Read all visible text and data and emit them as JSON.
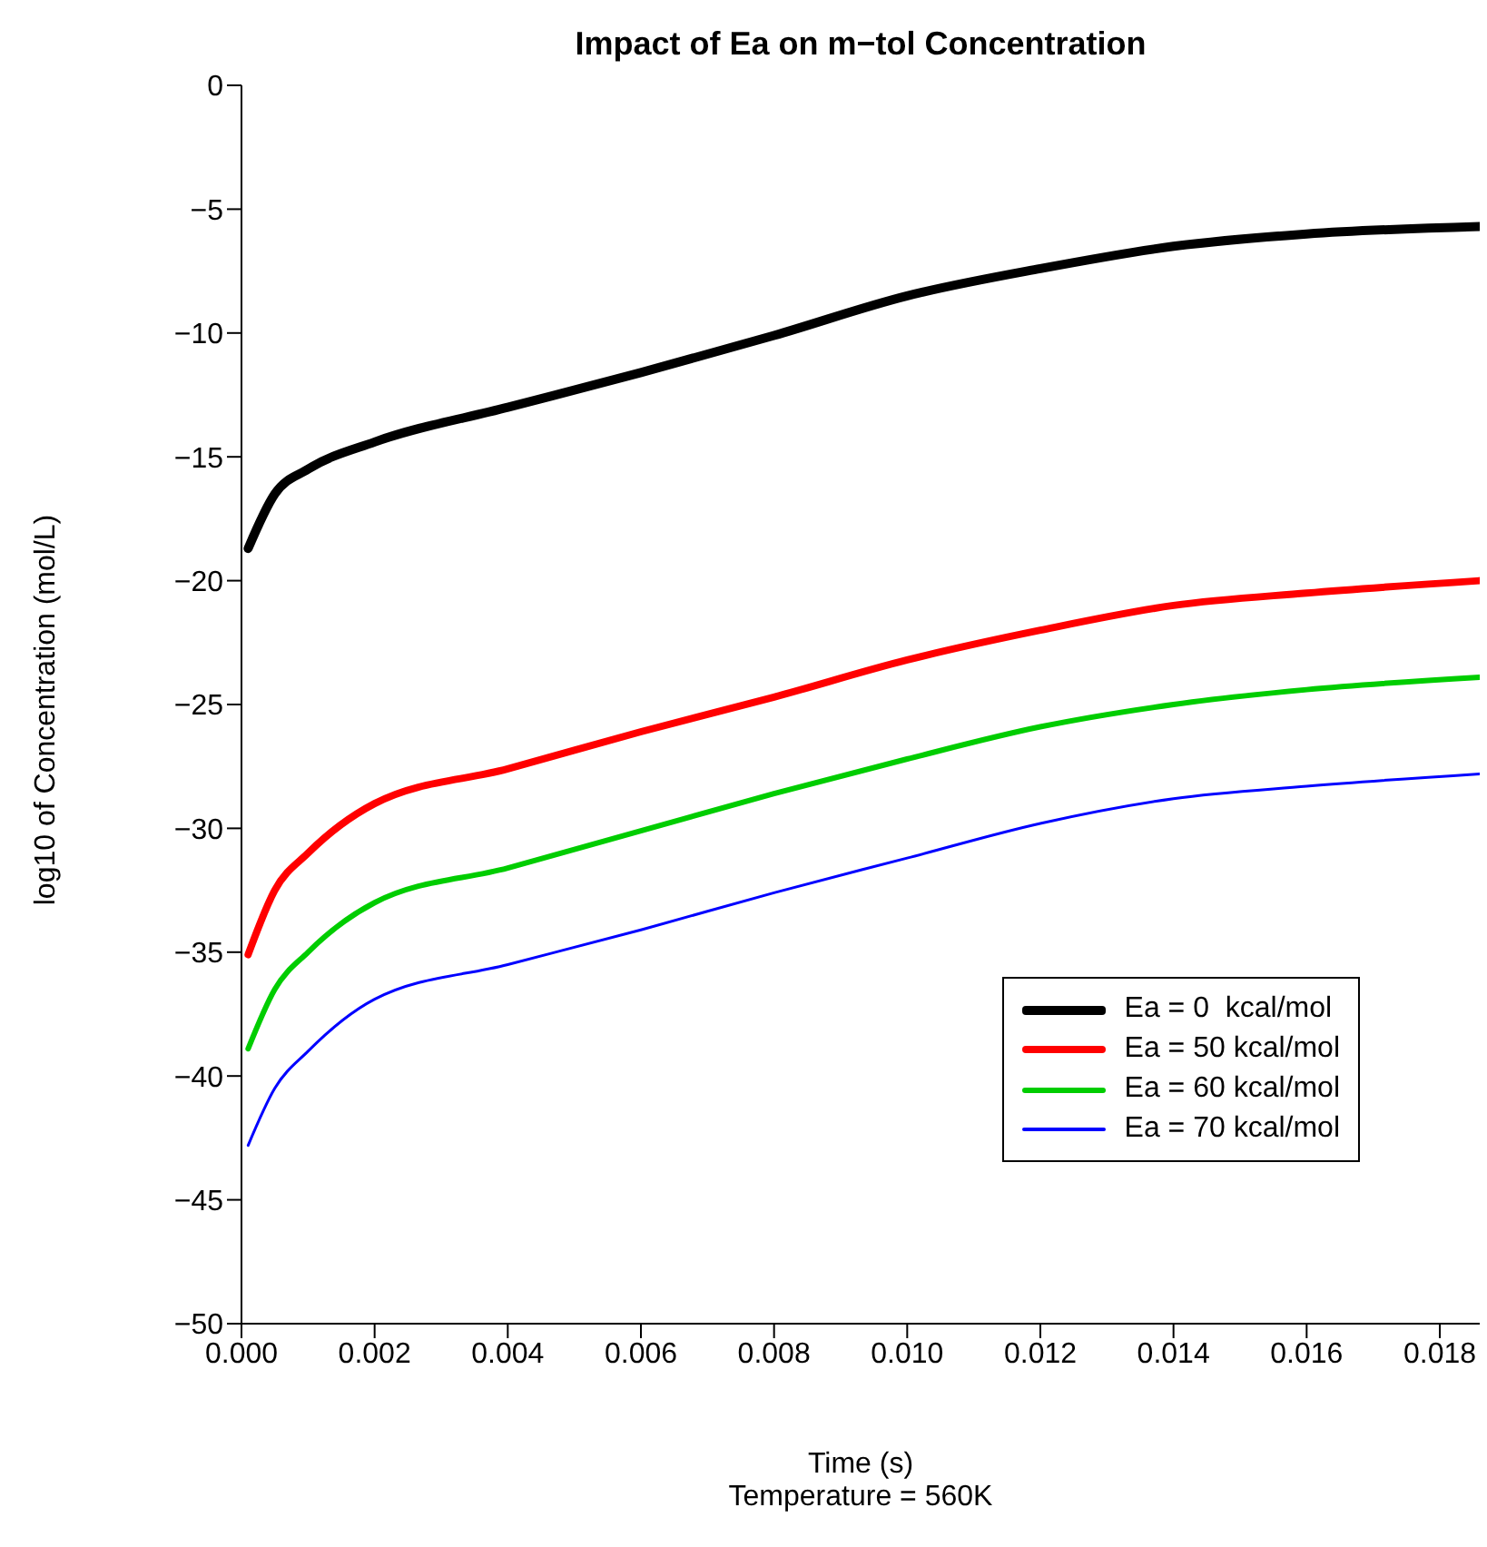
{
  "chart_data": {
    "type": "line",
    "title": "Impact of Ea on m−tol Concentration",
    "xlabel": "Time (s)",
    "ylabel": "log10 of Concentration (mol/L)",
    "annotations": [
      "Temperature = 560K"
    ],
    "x": [
      0.0001,
      0.0005,
      0.001,
      0.002,
      0.004,
      0.006,
      0.008,
      0.01,
      0.012,
      0.014,
      0.016,
      0.0186
    ],
    "series": [
      {
        "name": "Ea = 0  kcal/mol",
        "color": "#000000",
        "values": [
          -18.7,
          -16.5,
          -15.5,
          -14.4,
          -13.0,
          -11.6,
          -10.1,
          -8.5,
          -7.4,
          -6.5,
          -6.0,
          -5.7
        ]
      },
      {
        "name": "Ea = 50 kcal/mol",
        "color": "#ff0000",
        "values": [
          -35.1,
          -32.5,
          -31.0,
          -29.0,
          -27.6,
          -26.1,
          -24.7,
          -23.2,
          -22.0,
          -21.0,
          -20.5,
          -20.0
        ]
      },
      {
        "name": "Ea = 60 kcal/mol",
        "color": "#00cd00",
        "values": [
          -38.9,
          -36.5,
          -35.0,
          -33.0,
          -31.6,
          -30.1,
          -28.6,
          -27.2,
          -25.9,
          -25.0,
          -24.4,
          -23.9
        ]
      },
      {
        "name": "Ea = 70 kcal/mol",
        "color": "#0000ff",
        "values": [
          -42.8,
          -40.5,
          -39.0,
          -36.9,
          -35.5,
          -34.1,
          -32.6,
          -31.2,
          -29.8,
          -28.8,
          -28.3,
          -27.8
        ]
      }
    ],
    "xlim": [
      0,
      0.0186
    ],
    "xticks": [
      {
        "value": 0,
        "label": "0.000"
      },
      {
        "value": 0.002,
        "label": "0.002"
      },
      {
        "value": 0.004,
        "label": "0.004"
      },
      {
        "value": 0.006,
        "label": "0.006"
      },
      {
        "value": 0.008,
        "label": "0.008"
      },
      {
        "value": 0.01,
        "label": "0.010"
      },
      {
        "value": 0.012,
        "label": "0.012"
      },
      {
        "value": 0.014,
        "label": "0.014"
      },
      {
        "value": 0.016,
        "label": "0.016"
      },
      {
        "value": 0.018,
        "label": "0.018"
      }
    ],
    "ylim": [
      -50,
      0
    ],
    "yticks": [
      {
        "value": -50,
        "label": "−50"
      },
      {
        "value": -45,
        "label": "−45"
      },
      {
        "value": -40,
        "label": "−40"
      },
      {
        "value": -35,
        "label": "−35"
      },
      {
        "value": -30,
        "label": "−30"
      },
      {
        "value": -25,
        "label": "−25"
      },
      {
        "value": -20,
        "label": "−20"
      },
      {
        "value": -15,
        "label": "−15"
      },
      {
        "value": -10,
        "label": "−10"
      },
      {
        "value": -5,
        "label": "−5"
      },
      0
    ],
    "grid": false,
    "legend": "right",
    "marker": "none",
    "line_style": "solid"
  }
}
